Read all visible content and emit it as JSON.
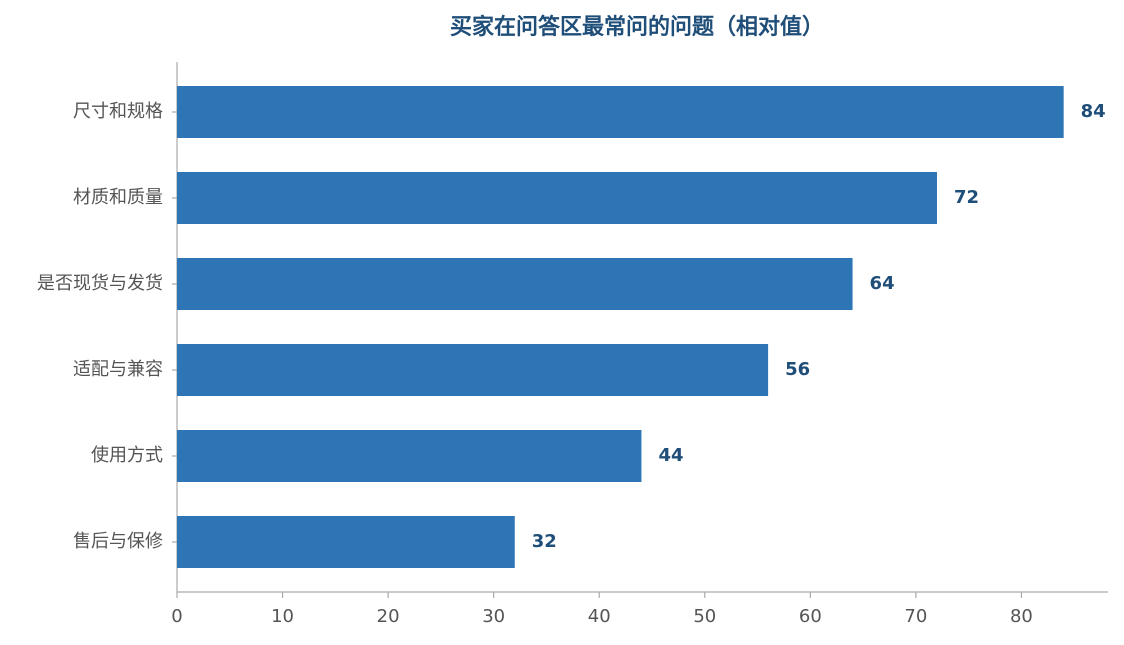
{
  "chart_data": {
    "type": "bar",
    "orientation": "horizontal",
    "title": "买家在问答区最常问的问题（相对值）",
    "categories": [
      "尺寸和规格",
      "材质和质量",
      "是否现货与发货",
      "适配与兼容",
      "使用方式",
      "售后与保修"
    ],
    "values": [
      84,
      72,
      64,
      56,
      44,
      32
    ],
    "color": "#2e75b6",
    "xlim": [
      0,
      88.2
    ],
    "xticks": [
      0,
      10,
      20,
      30,
      40,
      50,
      60,
      70,
      80
    ],
    "grid": false
  }
}
